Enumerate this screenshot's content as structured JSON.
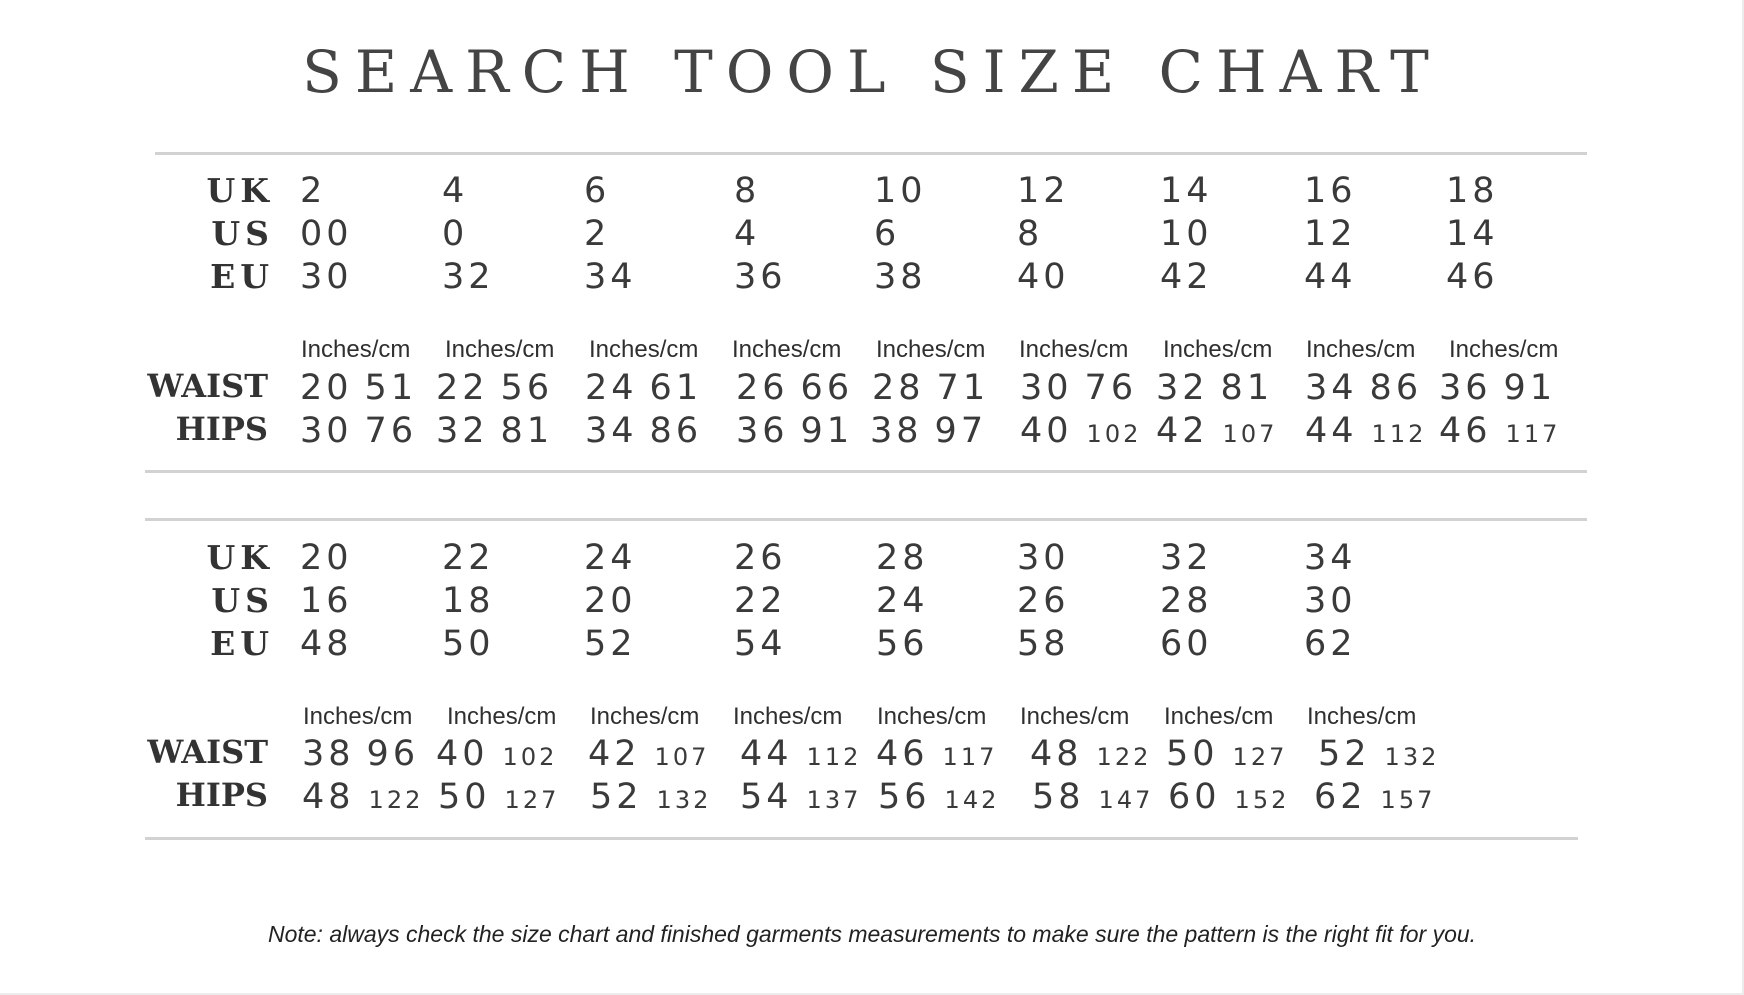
{
  "title": "SEARCH TOOL SIZE CHART",
  "unit_label": "Inches/cm",
  "labels": {
    "uk": "UK",
    "us": "US",
    "eu": "EU",
    "waist": "WAIST",
    "hips": "HIPS"
  },
  "sections": [
    {
      "uk": [
        "2",
        "4",
        "6",
        "8",
        "10",
        "12",
        "14",
        "16",
        "18"
      ],
      "us": [
        "00",
        "0",
        "2",
        "4",
        "6",
        "8",
        "10",
        "12",
        "14"
      ],
      "eu": [
        "30",
        "32",
        "34",
        "36",
        "38",
        "40",
        "42",
        "44",
        "46"
      ],
      "waist": [
        {
          "in": "20",
          "cm": "51"
        },
        {
          "in": "22",
          "cm": "56"
        },
        {
          "in": "24",
          "cm": "61"
        },
        {
          "in": "26",
          "cm": "66"
        },
        {
          "in": "28",
          "cm": "71"
        },
        {
          "in": "30",
          "cm": "76"
        },
        {
          "in": "32",
          "cm": "81"
        },
        {
          "in": "34",
          "cm": "86"
        },
        {
          "in": "36",
          "cm": "91"
        }
      ],
      "hips": [
        {
          "in": "30",
          "cm": "76"
        },
        {
          "in": "32",
          "cm": "81"
        },
        {
          "in": "34",
          "cm": "86"
        },
        {
          "in": "36",
          "cm": "91"
        },
        {
          "in": "38",
          "cm": "97"
        },
        {
          "in": "40",
          "cm": "102"
        },
        {
          "in": "42",
          "cm": "107"
        },
        {
          "in": "44",
          "cm": "112"
        },
        {
          "in": "46",
          "cm": "117"
        }
      ]
    },
    {
      "uk": [
        "20",
        "22",
        "24",
        "26",
        "28",
        "30",
        "32",
        "34"
      ],
      "us": [
        "16",
        "18",
        "20",
        "22",
        "24",
        "26",
        "28",
        "30"
      ],
      "eu": [
        "48",
        "50",
        "52",
        "54",
        "56",
        "58",
        "60",
        "62"
      ],
      "waist": [
        {
          "in": "38",
          "cm": "96"
        },
        {
          "in": "40",
          "cm": "102"
        },
        {
          "in": "42",
          "cm": "107"
        },
        {
          "in": "44",
          "cm": "112"
        },
        {
          "in": "46",
          "cm": "117"
        },
        {
          "in": "48",
          "cm": "122"
        },
        {
          "in": "50",
          "cm": "127"
        },
        {
          "in": "52",
          "cm": "132"
        }
      ],
      "hips": [
        {
          "in": "48",
          "cm": "122"
        },
        {
          "in": "50",
          "cm": "127"
        },
        {
          "in": "52",
          "cm": "132"
        },
        {
          "in": "54",
          "cm": "137"
        },
        {
          "in": "56",
          "cm": "142"
        },
        {
          "in": "58",
          "cm": "147"
        },
        {
          "in": "60",
          "cm": "152"
        },
        {
          "in": "62",
          "cm": "157"
        }
      ]
    }
  ],
  "note": "Note: always check the size chart and finished garments measurements to make sure the pattern is the right fit for you."
}
